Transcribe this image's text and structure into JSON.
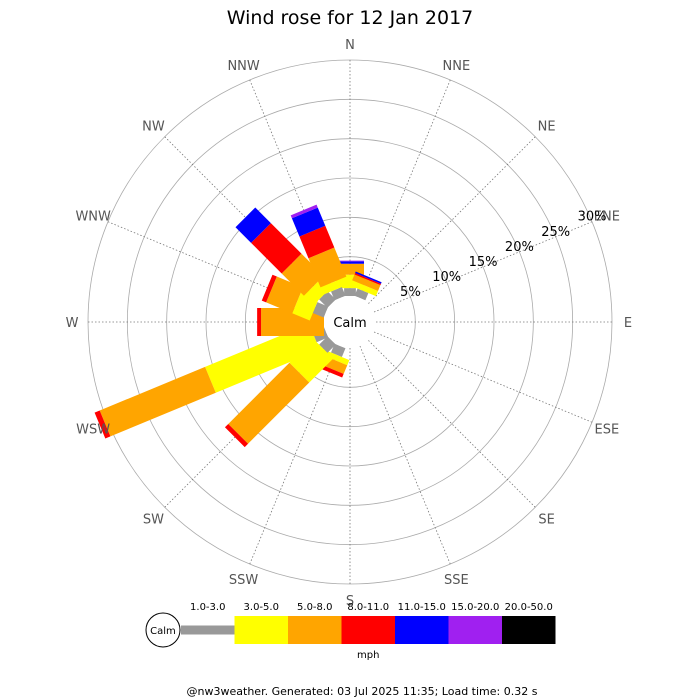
{
  "chart_data": {
    "type": "wind-rose",
    "title": "Wind rose for 12 Jan 2017",
    "directions": [
      "N",
      "NNE",
      "NE",
      "ENE",
      "E",
      "ESE",
      "SE",
      "SSE",
      "S",
      "SSW",
      "SW",
      "WSW",
      "W",
      "WNW",
      "NW",
      "NNW"
    ],
    "radial_labels": [
      "5%",
      "10%",
      "15%",
      "20%",
      "25%",
      "30%"
    ],
    "radial_max_percent": 30,
    "center_label": "Calm",
    "speed_bins": [
      {
        "label": "1.0-3.0",
        "color": "#999999"
      },
      {
        "label": "3.0-5.0",
        "color": "#ffff00"
      },
      {
        "label": "5.0-8.0",
        "color": "#ffa500"
      },
      {
        "label": "8.0-11.0",
        "color": "#ff0000"
      },
      {
        "label": "11.0-15.0",
        "color": "#0000ff"
      },
      {
        "label": "15.0-20.0",
        "color": "#a020f0"
      },
      {
        "label": "20.0-50.0",
        "color": "#000000"
      }
    ],
    "units": "mph",
    "series_percent_by_direction": [
      {
        "direction": "N",
        "values": [
          1.0,
          1.7,
          1.4,
          0.0,
          0.3,
          0.1,
          0.0
        ]
      },
      {
        "direction": "NNE",
        "values": [
          1.0,
          0.7,
          0.8,
          0.2,
          0.2,
          0.0,
          0.0
        ]
      },
      {
        "direction": "NE",
        "values": [
          0.0,
          0.0,
          0.0,
          0.0,
          0.0,
          0.0,
          0.0
        ]
      },
      {
        "direction": "ENE",
        "values": [
          0.0,
          0.0,
          0.0,
          0.0,
          0.0,
          0.0,
          0.0
        ]
      },
      {
        "direction": "E",
        "values": [
          0.0,
          0.0,
          0.0,
          0.0,
          0.0,
          0.0,
          0.0
        ]
      },
      {
        "direction": "ESE",
        "values": [
          0.0,
          0.0,
          0.0,
          0.0,
          0.0,
          0.0,
          0.0
        ]
      },
      {
        "direction": "SE",
        "values": [
          0.0,
          0.0,
          0.0,
          0.0,
          0.0,
          0.0,
          0.0
        ]
      },
      {
        "direction": "SSE",
        "values": [
          0.0,
          0.0,
          0.0,
          0.0,
          0.0,
          0.0,
          0.0
        ]
      },
      {
        "direction": "S",
        "values": [
          0.0,
          0.0,
          0.0,
          0.0,
          0.0,
          0.0,
          0.0
        ]
      },
      {
        "direction": "SSW",
        "values": [
          1.2,
          0.7,
          1.2,
          0.5,
          0.0,
          0.0,
          0.0
        ]
      },
      {
        "direction": "SW",
        "values": [
          1.5,
          4.3,
          11.0,
          0.6,
          0.0,
          0.0,
          0.0
        ]
      },
      {
        "direction": "WSW",
        "values": [
          1.6,
          14.3,
          14.5,
          0.7,
          0.0,
          0.0,
          0.0
        ]
      },
      {
        "direction": "W",
        "values": [
          0.0,
          0.0,
          8.0,
          0.5,
          0.0,
          0.0,
          0.0
        ]
      },
      {
        "direction": "WNW",
        "values": [
          1.5,
          2.4,
          3.6,
          0.6,
          0.0,
          0.0,
          0.0
        ]
      },
      {
        "direction": "NW",
        "values": [
          1.5,
          1.7,
          4.0,
          5.5,
          2.8,
          0.0,
          0.0
        ]
      },
      {
        "direction": "NNW",
        "values": [
          1.2,
          1.0,
          4.0,
          3.0,
          2.5,
          0.4,
          0.0
        ]
      }
    ]
  },
  "footer": "@nw3weather. Generated: 03 Jul 2025 11:35; Load time: 0.32 s"
}
